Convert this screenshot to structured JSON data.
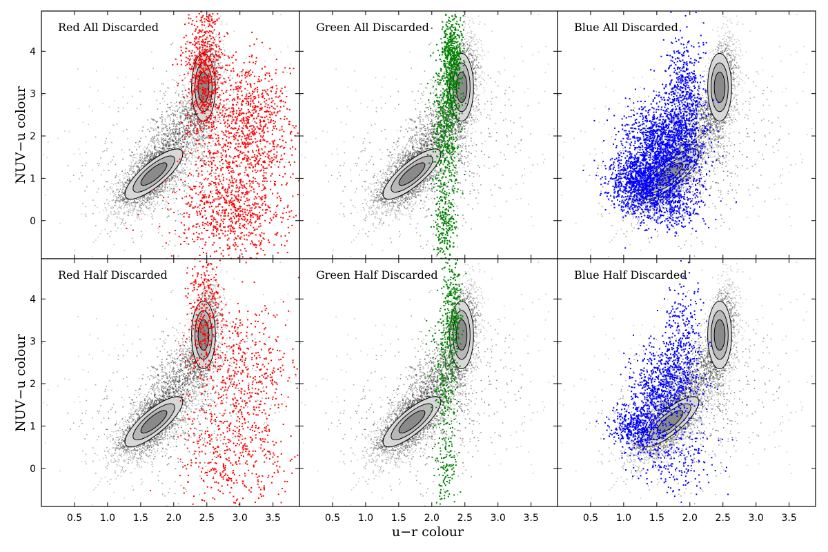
{
  "figure": {
    "xlabel": "u−r colour",
    "ylabel": "NUV−u colour"
  },
  "chart_data": [
    {
      "type": "scatter",
      "title": "Red All Discarded",
      "highlight_color": "#ff0000",
      "background_color": "#000000",
      "xlim": [
        0.0,
        3.9
      ],
      "ylim": [
        -0.9,
        4.95
      ],
      "xticks": [
        "0.5",
        "1.0",
        "1.5",
        "2.0",
        "2.5",
        "3.0",
        "3.5"
      ],
      "yticks": [
        "0",
        "1",
        "2",
        "3",
        "4"
      ],
      "highlight_clusters": [
        {
          "center": [
            2.45,
            3.6
          ],
          "spread": [
            0.14,
            0.9
          ],
          "count": 700
        },
        {
          "center": [
            3.1,
            2.3
          ],
          "spread": [
            0.35,
            0.8
          ],
          "count": 900
        },
        {
          "center": [
            2.85,
            0.3
          ],
          "spread": [
            0.4,
            0.6
          ],
          "count": 800
        }
      ]
    },
    {
      "type": "scatter",
      "title": "Green All Discarded",
      "highlight_color": "#008000",
      "background_color": "#000000",
      "xlim": [
        0.0,
        3.9
      ],
      "ylim": [
        -0.9,
        4.95
      ],
      "xticks": [
        "0.5",
        "1.0",
        "1.5",
        "2.0",
        "2.5",
        "3.0",
        "3.5"
      ],
      "yticks": [
        "0",
        "1",
        "2",
        "3",
        "4"
      ],
      "highlight_clusters": [
        {
          "center": [
            2.3,
            3.8
          ],
          "spread": [
            0.08,
            0.6
          ],
          "count": 600
        },
        {
          "center": [
            2.2,
            2.2
          ],
          "spread": [
            0.1,
            0.8
          ],
          "count": 500
        },
        {
          "center": [
            2.2,
            0.0
          ],
          "spread": [
            0.08,
            0.5
          ],
          "count": 250
        }
      ]
    },
    {
      "type": "scatter",
      "title": "Blue All Discarded",
      "highlight_color": "#0000ff",
      "background_color": "#000000",
      "xlim": [
        0.0,
        3.9
      ],
      "ylim": [
        -0.9,
        4.95
      ],
      "xticks": [
        "0.5",
        "1.0",
        "1.5",
        "2.0",
        "2.5",
        "3.0",
        "3.5"
      ],
      "yticks": [
        "0",
        "1",
        "2",
        "3",
        "4"
      ],
      "highlight_clusters": [
        {
          "center": [
            1.2,
            0.9
          ],
          "spread": [
            0.22,
            0.35
          ],
          "count": 900
        },
        {
          "center": [
            1.6,
            1.8
          ],
          "spread": [
            0.3,
            0.5
          ],
          "count": 1400
        },
        {
          "center": [
            1.9,
            2.9
          ],
          "spread": [
            0.15,
            0.7
          ],
          "count": 600
        },
        {
          "center": [
            1.7,
            0.5
          ],
          "spread": [
            0.25,
            0.35
          ],
          "count": 500
        }
      ]
    },
    {
      "type": "scatter",
      "title": "Red Half Discarded",
      "highlight_color": "#ff0000",
      "background_color": "#000000",
      "xlim": [
        0.0,
        3.9
      ],
      "ylim": [
        -0.9,
        4.95
      ],
      "xticks": [
        "0.5",
        "1.0",
        "1.5",
        "2.0",
        "2.5",
        "3.0",
        "3.5"
      ],
      "yticks": [
        "0",
        "1",
        "2",
        "3",
        "4"
      ],
      "highlight_clusters": [
        {
          "center": [
            2.45,
            3.6
          ],
          "spread": [
            0.14,
            0.9
          ],
          "count": 350
        },
        {
          "center": [
            3.1,
            2.3
          ],
          "spread": [
            0.35,
            0.8
          ],
          "count": 450
        },
        {
          "center": [
            2.85,
            0.3
          ],
          "spread": [
            0.4,
            0.6
          ],
          "count": 400
        }
      ]
    },
    {
      "type": "scatter",
      "title": "Green Half Discarded",
      "highlight_color": "#008000",
      "background_color": "#000000",
      "xlim": [
        0.0,
        3.9
      ],
      "ylim": [
        -0.9,
        4.95
      ],
      "xticks": [
        "0.5",
        "1.0",
        "1.5",
        "2.0",
        "2.5",
        "3.0",
        "3.5"
      ],
      "yticks": [
        "0",
        "1",
        "2",
        "3",
        "4"
      ],
      "highlight_clusters": [
        {
          "center": [
            2.3,
            3.8
          ],
          "spread": [
            0.08,
            0.6
          ],
          "count": 300
        },
        {
          "center": [
            2.2,
            2.2
          ],
          "spread": [
            0.1,
            0.8
          ],
          "count": 250
        },
        {
          "center": [
            2.2,
            0.0
          ],
          "spread": [
            0.08,
            0.5
          ],
          "count": 120
        }
      ]
    },
    {
      "type": "scatter",
      "title": "Blue Half Discarded",
      "highlight_color": "#0000ff",
      "background_color": "#000000",
      "xlim": [
        0.0,
        3.9
      ],
      "ylim": [
        -0.9,
        4.95
      ],
      "xticks": [
        "0.5",
        "1.0",
        "1.5",
        "2.0",
        "2.5",
        "3.0",
        "3.5"
      ],
      "yticks": [
        "0",
        "1",
        "2",
        "3",
        "4"
      ],
      "highlight_clusters": [
        {
          "center": [
            1.2,
            1.0
          ],
          "spread": [
            0.2,
            0.3
          ],
          "count": 500
        },
        {
          "center": [
            1.6,
            2.0
          ],
          "spread": [
            0.25,
            0.5
          ],
          "count": 700
        },
        {
          "center": [
            1.9,
            3.0
          ],
          "spread": [
            0.15,
            0.7
          ],
          "count": 300
        },
        {
          "center": [
            1.8,
            0.2
          ],
          "spread": [
            0.3,
            0.4
          ],
          "count": 200
        }
      ]
    }
  ]
}
